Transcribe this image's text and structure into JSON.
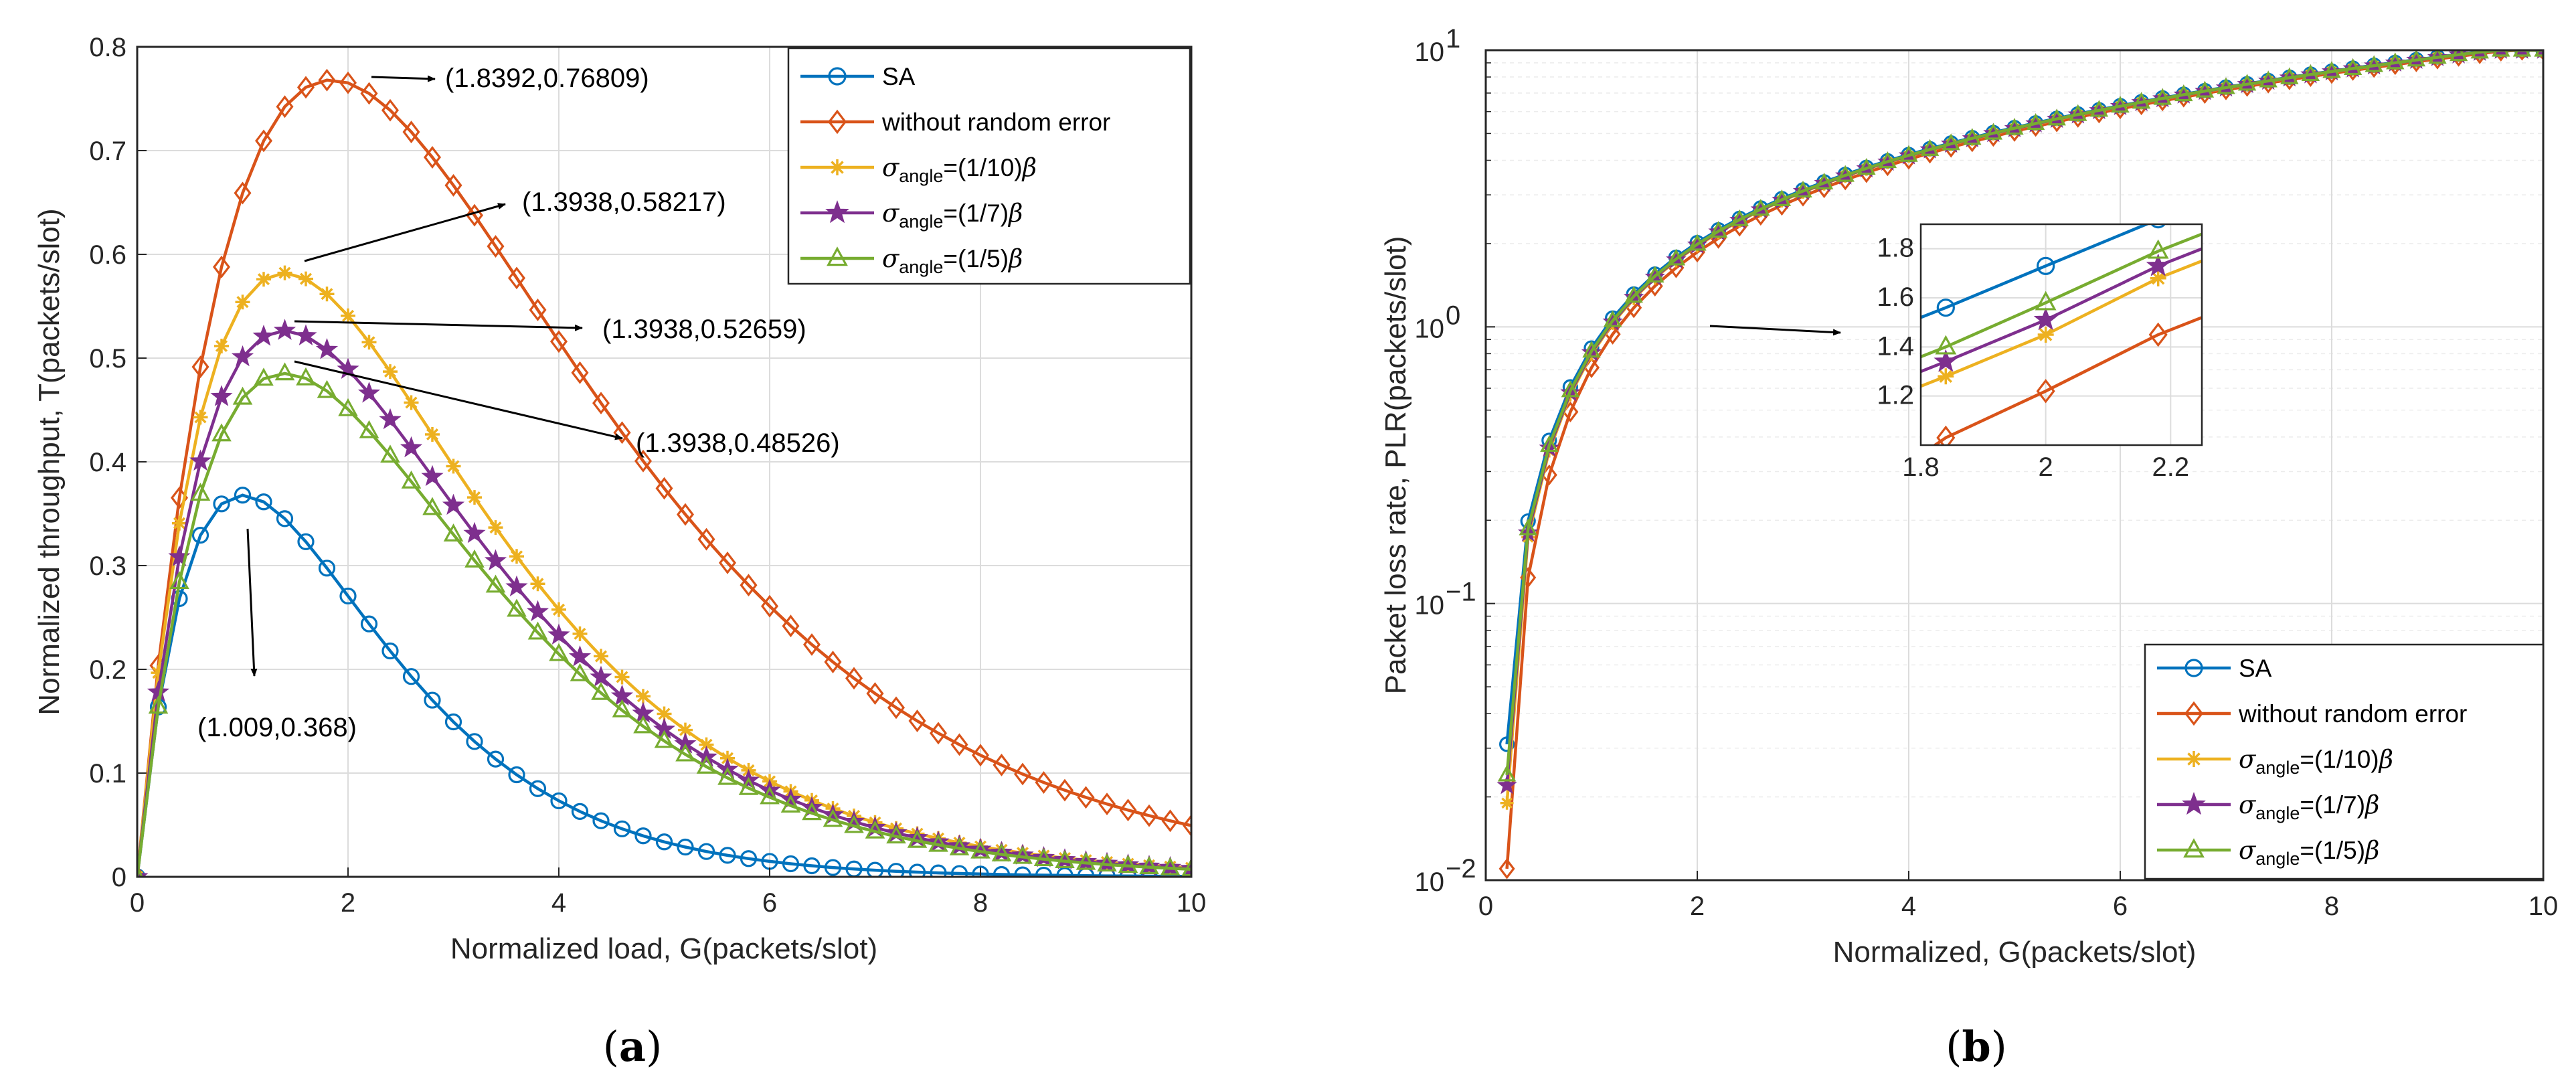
{
  "colors": {
    "SA": "#0072BD",
    "without random error": "#D95319",
    "angle_1_10": "#EDB120",
    "angle_1_7": "#7E2F8E",
    "angle_1_5": "#77AC30"
  },
  "chart_data": [
    {
      "id": "a",
      "type": "line",
      "caption": "(a)",
      "caption_letter": "a",
      "xlabel": "Normalized load, G(packets/slot)",
      "ylabel": "Normalized throughput, T(packets/slot)",
      "xlim": [
        0,
        10
      ],
      "ylim": [
        0,
        0.8
      ],
      "xticks": [
        0,
        2,
        4,
        6,
        8,
        10
      ],
      "xtick_labels": [
        "0",
        "2",
        "4",
        "6",
        "8",
        "10"
      ],
      "yticks": [
        0,
        0.1,
        0.2,
        0.3,
        0.4,
        0.5,
        0.6,
        0.7,
        0.8
      ],
      "ytick_labels": [
        "0",
        "0.1",
        "0.2",
        "0.3",
        "0.4",
        "0.5",
        "0.6",
        "0.7",
        "0.8"
      ],
      "grid": true,
      "legend_position": "top-right",
      "series": [
        {
          "key": "SA",
          "name": "SA",
          "marker": "circle",
          "model": "sa",
          "scale": 1.0
        },
        {
          "key": "without random error",
          "name": "without random error",
          "marker": "diamond",
          "model": "shifted",
          "peak": 0.76809,
          "G0": 1.8392
        },
        {
          "key": "angle_1_10",
          "name_sub": "angle",
          "name_prefix": "σ",
          "name_suffix": "=(1/10)",
          "name_beta": "β",
          "marker": "asterisk",
          "model": "shifted",
          "peak": 0.58217,
          "G0": 1.3938
        },
        {
          "key": "angle_1_7",
          "name_sub": "angle",
          "name_prefix": "σ",
          "name_suffix": "=(1/7)",
          "name_beta": "β",
          "marker": "star",
          "model": "shifted",
          "peak": 0.52659,
          "G0": 1.3938
        },
        {
          "key": "angle_1_5",
          "name_sub": "angle",
          "name_prefix": "σ",
          "name_suffix": "=(1/5)",
          "name_beta": "β",
          "marker": "triangle",
          "model": "shifted",
          "peak": 0.48526,
          "G0": 1.3938
        }
      ],
      "annotations": [
        {
          "text": "(1.8392,0.76809)",
          "point": [
            1.8392,
            0.76809
          ]
        },
        {
          "text": "(1.3938,0.58217)",
          "point": [
            1.3938,
            0.58217
          ]
        },
        {
          "text": "(1.3938,0.52659)",
          "point": [
            1.3938,
            0.52659
          ]
        },
        {
          "text": "(1.3938,0.48526)",
          "point": [
            1.3938,
            0.48526
          ]
        },
        {
          "text": "(1.009,0.368)",
          "point": [
            1.009,
            0.368
          ]
        }
      ]
    },
    {
      "id": "b",
      "type": "line",
      "caption": "(b)",
      "caption_letter": "b",
      "xlabel": "Normalized, G(packets/slot)",
      "ylabel": "Packet loss rate, PLR(packets/slot)",
      "xlim": [
        0,
        10
      ],
      "ylim": [
        0.01,
        10
      ],
      "yscale": "log",
      "xticks": [
        0,
        2,
        4,
        6,
        8,
        10
      ],
      "xtick_labels": [
        "0",
        "2",
        "4",
        "6",
        "8",
        "10"
      ],
      "yticks": [
        0.01,
        0.1,
        1,
        10
      ],
      "ytick_labels": [
        {
          "base": "10",
          "exp": "−2"
        },
        {
          "base": "10",
          "exp": "−1"
        },
        {
          "base": "10",
          "exp": "0"
        },
        {
          "base": "10",
          "exp": "1"
        }
      ],
      "grid": true,
      "legend_position": "bottom-right",
      "series": [
        {
          "key": "SA",
          "name": "SA",
          "marker": "circle",
          "offset": 0.0
        },
        {
          "key": "without random error",
          "name": "without random error",
          "marker": "diamond",
          "offset": 0.6
        },
        {
          "key": "angle_1_10",
          "name_sub": "angle",
          "name_prefix": "σ",
          "name_suffix": "=(1/10)",
          "name_beta": "β",
          "marker": "asterisk",
          "offset": 0.2
        },
        {
          "key": "angle_1_7",
          "name_sub": "angle",
          "name_prefix": "σ",
          "name_suffix": "=(1/7)",
          "name_beta": "β",
          "marker": "star",
          "offset": 0.15
        },
        {
          "key": "angle_1_5",
          "name_sub": "angle",
          "name_prefix": "σ",
          "name_suffix": "=(1/5)",
          "name_beta": "β",
          "marker": "triangle",
          "offset": 0.1
        }
      ],
      "inset": {
        "xlim": [
          1.8,
          2.25
        ],
        "ylim": [
          1.0,
          1.9
        ],
        "xticks": [
          1.8,
          2,
          2.2
        ],
        "xtick_labels": [
          "1.8",
          "2",
          "2.2"
        ],
        "yticks": [
          1.2,
          1.4,
          1.6,
          1.8
        ],
        "ytick_labels": [
          "1.2",
          "1.4",
          "1.6",
          "1.8"
        ]
      }
    }
  ]
}
